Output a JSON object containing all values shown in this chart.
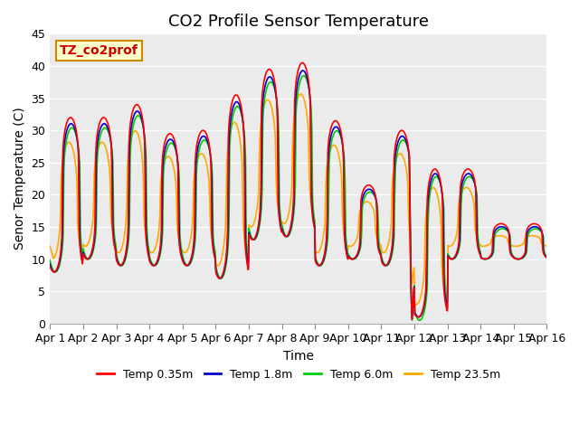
{
  "title": "CO2 Profile Sensor Temperature",
  "ylabel": "Senor Temperature (C)",
  "xlabel": "Time",
  "annotation_text": "TZ_co2prof",
  "annotation_bg": "#ffffcc",
  "annotation_border": "#cc8800",
  "ylim": [
    0,
    45
  ],
  "xlim": [
    0,
    15
  ],
  "xtick_labels": [
    "Apr 1",
    "Apr 2",
    "Apr 3",
    "Apr 4",
    "Apr 5",
    "Apr 6",
    "Apr 7",
    "Apr 8",
    "Apr 9",
    "Apr 10",
    "Apr 11",
    "Apr 12",
    "Apr 13",
    "Apr 14",
    "Apr 15",
    "Apr 16"
  ],
  "ytick_values": [
    0,
    5,
    10,
    15,
    20,
    25,
    30,
    35,
    40,
    45
  ],
  "line_colors": [
    "#ff0000",
    "#0000cc",
    "#00cc00",
    "#ffaa00"
  ],
  "line_labels": [
    "Temp 0.35m",
    "Temp 1.8m",
    "Temp 6.0m",
    "Temp 23.5m"
  ],
  "line_width": 1.2,
  "plot_bg": "#ebebeb",
  "title_fontsize": 13,
  "axis_fontsize": 10,
  "tick_fontsize": 9,
  "peaks_red": [
    32,
    32,
    34,
    29.5,
    30,
    35.5,
    39.5,
    40.5,
    31.5,
    21.5,
    30,
    24,
    24,
    15.5
  ],
  "troughs_red": [
    8,
    10,
    9,
    9,
    9,
    7,
    13,
    13.5,
    9,
    10,
    9,
    1,
    10,
    10
  ],
  "peak_hour": 0.58,
  "trough_hour": 0.25
}
